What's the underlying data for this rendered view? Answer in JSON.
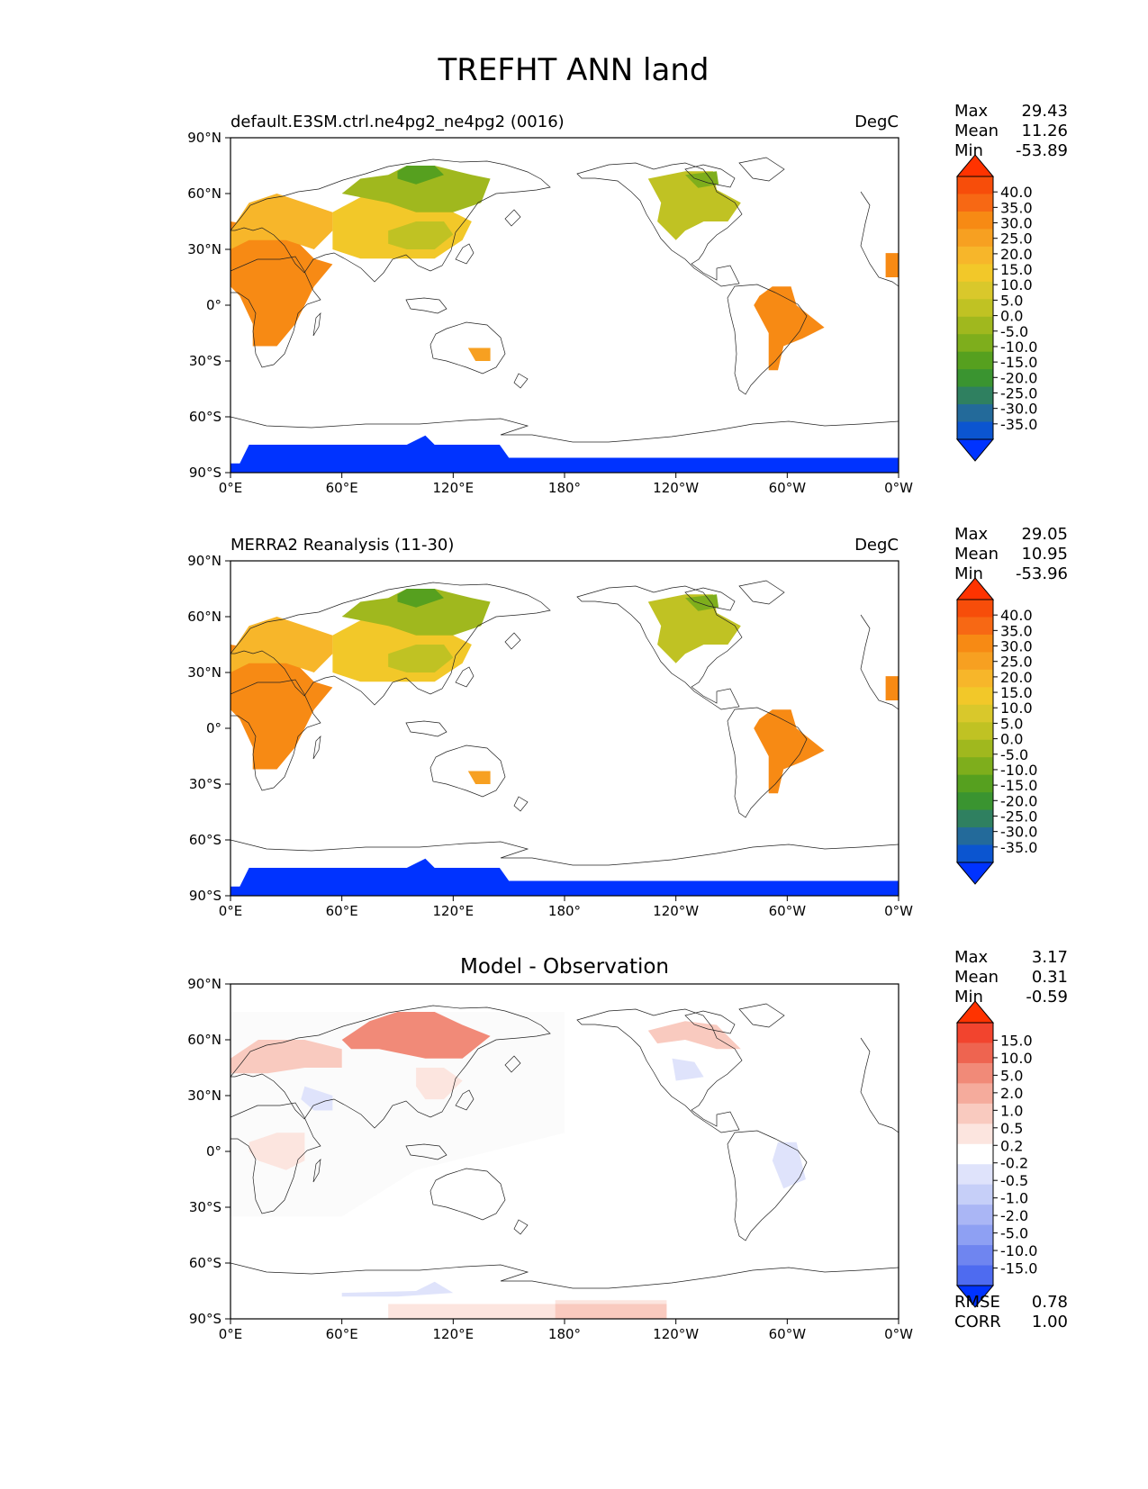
{
  "title": "TREFHT ANN land",
  "lat_labels": [
    "90°N",
    "60°N",
    "30°N",
    "0°",
    "30°S",
    "60°S",
    "90°S"
  ],
  "lon_labels": [
    "0°E",
    "60°E",
    "120°E",
    "180°",
    "120°W",
    "60°W",
    "0°W"
  ],
  "panels": [
    {
      "id": "test",
      "left_title": "default.E3SM.ctrl.ne4pg2_ne4pg2 (0016)",
      "center_title": "",
      "units": "DegC",
      "stats": [
        {
          "label": "Max",
          "value": "29.43"
        },
        {
          "label": "Mean",
          "value": "11.26"
        },
        {
          "label": "Min",
          "value": "-53.89"
        }
      ],
      "colorbar": {
        "labels": [
          "40.0",
          "35.0",
          "30.0",
          "25.0",
          "20.0",
          "15.0",
          "10.0",
          "5.0",
          "0.0",
          "-5.0",
          "-10.0",
          "-15.0",
          "-20.0",
          "-25.0",
          "-30.0",
          "-35.0"
        ],
        "colors": [
          "#ff3300",
          "#f74d0a",
          "#f76814",
          "#f78a14",
          "#f7a021",
          "#f7b62a",
          "#f2c829",
          "#d9c82b",
          "#c0c223",
          "#a0b81e",
          "#7eae1c",
          "#56a01f",
          "#3a9430",
          "#2f8060",
          "#236a9a",
          "#0b55d0",
          "#0033ff"
        ]
      },
      "extra_stats": []
    },
    {
      "id": "ref",
      "left_title": "MERRA2 Reanalysis (11-30)",
      "center_title": "",
      "units": "DegC",
      "stats": [
        {
          "label": "Max",
          "value": "29.05"
        },
        {
          "label": "Mean",
          "value": "10.95"
        },
        {
          "label": "Min",
          "value": "-53.96"
        }
      ],
      "colorbar": {
        "labels": [
          "40.0",
          "35.0",
          "30.0",
          "25.0",
          "20.0",
          "15.0",
          "10.0",
          "5.0",
          "0.0",
          "-5.0",
          "-10.0",
          "-15.0",
          "-20.0",
          "-25.0",
          "-30.0",
          "-35.0"
        ],
        "colors": [
          "#ff3300",
          "#f74d0a",
          "#f76814",
          "#f78a14",
          "#f7a021",
          "#f7b62a",
          "#f2c829",
          "#d9c82b",
          "#c0c223",
          "#a0b81e",
          "#7eae1c",
          "#56a01f",
          "#3a9430",
          "#2f8060",
          "#236a9a",
          "#0b55d0",
          "#0033ff"
        ]
      },
      "extra_stats": []
    },
    {
      "id": "diff",
      "left_title": "",
      "center_title": "Model - Observation",
      "units": "",
      "stats": [
        {
          "label": "Max",
          "value": "3.17"
        },
        {
          "label": "Mean",
          "value": "0.31"
        },
        {
          "label": "Min",
          "value": "-0.59"
        }
      ],
      "colorbar": {
        "labels": [
          "15.0",
          "10.0",
          "5.0",
          "2.0",
          "1.0",
          "0.5",
          "0.2",
          "-0.2",
          "-0.5",
          "-1.0",
          "-2.0",
          "-5.0",
          "-10.0",
          "-15.0"
        ],
        "colors": [
          "#ff3300",
          "#f2442e",
          "#ee6450",
          "#f18a78",
          "#f5ab9c",
          "#f9cabf",
          "#fce5df",
          "#ffffff",
          "#dfe3fb",
          "#c6cff8",
          "#aab6f5",
          "#8ea0f3",
          "#6f85f0",
          "#4e6bf0",
          "#0033ff"
        ]
      },
      "extra_stats": [
        {
          "label": "RMSE",
          "value": "0.78"
        },
        {
          "label": "CORR",
          "value": "1.00"
        }
      ]
    }
  ]
}
